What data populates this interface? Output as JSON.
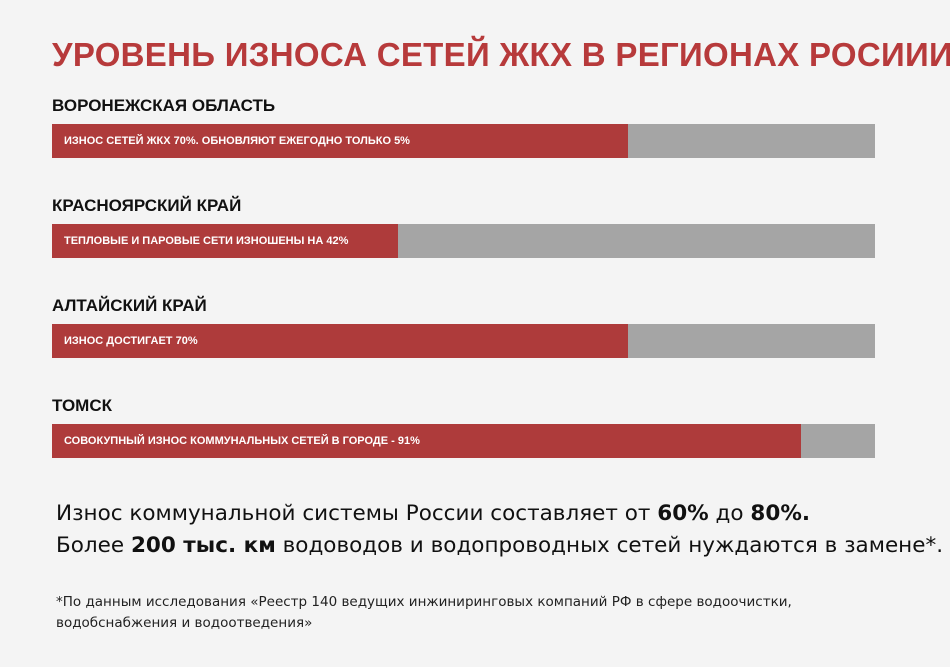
{
  "title": "УРОВЕНЬ ИЗНОСА СЕТЕЙ ЖКХ В РЕГИОНАХ РОСИИИ",
  "colors": {
    "accent": "#ae3b3b",
    "track": "#a5a5a5",
    "title": "#b73a3b",
    "background": "#f4f4f4"
  },
  "chart_data": {
    "type": "bar",
    "orientation": "horizontal",
    "title": "УРОВЕНЬ ИЗНОСА СЕТЕЙ ЖКХ В РЕГИОНАХ РОСИИИ",
    "categories": [
      "ВОРОНЕЖСКАЯ ОБЛАСТЬ",
      "КРАСНОЯРСКИЙ КРАЙ",
      "АЛТАЙСКИЙ КРАЙ",
      "ТОМСК"
    ],
    "values": [
      70,
      42,
      70,
      91
    ],
    "bar_labels": [
      "ИЗНОС СЕТЕЙ ЖКХ 70%. ОБНОВЛЯЮТ ЕЖЕГОДНО ТОЛЬКО 5%",
      "ТЕПЛОВЫЕ И ПАРОВЫЕ СЕТИ ИЗНОШЕНЫ НА 42%",
      "ИЗНОС ДОСТИГАЕТ 70%",
      "СОВОКУПНЫЙ ИЗНОС КОММУНАЛЬНЫХ СЕТЕЙ В ГОРОДЕ - 91%"
    ],
    "xlim": [
      0,
      100
    ],
    "xlabel": "",
    "ylabel": "",
    "grid": false,
    "legend": "none"
  },
  "summary": {
    "line1": {
      "pre": "Износ коммунальной системы России составляет от ",
      "v1": "60%",
      "mid": " до ",
      "v2": "80%."
    },
    "line2": {
      "pre": "Более ",
      "v": "200 тыс. км",
      "post": " водоводов и водопроводных сетей нуждаются в замене*."
    }
  },
  "footnote": {
    "line1": "*По данным исследования «Реестр 140 ведущих инжиниринговых компаний РФ в сфере водоочистки,",
    "line2": "водобснабжения и водоотведения»"
  }
}
